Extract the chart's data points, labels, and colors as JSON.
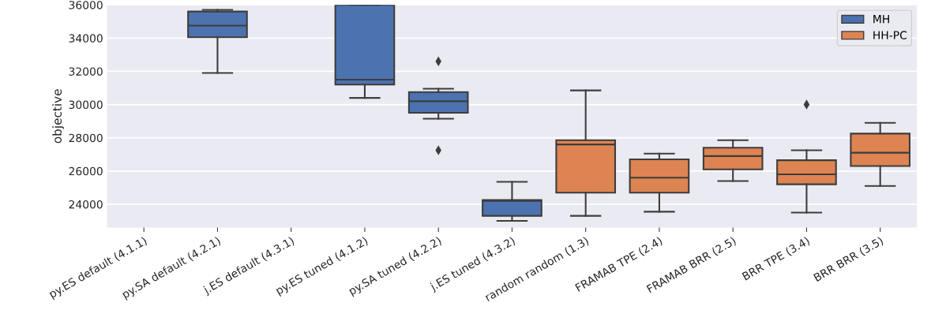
{
  "chart_data": {
    "type": "box",
    "ylabel": "objective",
    "categories": [
      "py.ES default (4.1.1)",
      "py.SA default (4.2.1)",
      "j.ES default (4.3.1)",
      "py.ES tuned (4.1.2)",
      "py.SA tuned (4.2.2)",
      "j.ES tuned (4.3.2)",
      "random random (1.3)",
      "FRAMAB TPE (2.4)",
      "FRAMAB BRR (2.5)",
      "BRR TPE (3.4)",
      "BRR BRR (3.5)"
    ],
    "series": [
      {
        "name": "MH",
        "color": "#4c72b0",
        "boxes": [
          null,
          {
            "low": 31900,
            "q1": 34050,
            "median": 34750,
            "q3": 35600,
            "high": 35700
          },
          null,
          {
            "low": 30400,
            "q1": 31200,
            "median": 31500,
            "q3": 36000,
            "high": 36000
          },
          {
            "low": 29150,
            "q1": 29500,
            "median": 30200,
            "q3": 30750,
            "high": 30950,
            "outliers": [
              32600,
              27250
            ]
          },
          {
            "low": 23000,
            "q1": 23300,
            "median": 24200,
            "q3": 24250,
            "high": 25350
          },
          null,
          null,
          null,
          null,
          null
        ]
      },
      {
        "name": "HH-PC",
        "color": "#dd8452",
        "boxes": [
          null,
          null,
          null,
          null,
          null,
          null,
          {
            "low": 23300,
            "q1": 24700,
            "median": 27600,
            "q3": 27850,
            "high": 30850
          },
          {
            "low": 23550,
            "q1": 24700,
            "median": 25600,
            "q3": 26700,
            "high": 27050
          },
          {
            "low": 25400,
            "q1": 26100,
            "median": 26900,
            "q3": 27400,
            "high": 27850
          },
          {
            "low": 23500,
            "q1": 25200,
            "median": 25800,
            "q3": 26650,
            "high": 27250,
            "outliers": [
              30000
            ]
          },
          {
            "low": 25100,
            "q1": 26300,
            "median": 27100,
            "q3": 28250,
            "high": 28900
          }
        ]
      }
    ],
    "ylim": [
      22600,
      36000
    ],
    "yticks": [
      24000,
      26000,
      28000,
      30000,
      32000,
      34000,
      36000
    ],
    "grid": "y",
    "legend": "top right"
  }
}
